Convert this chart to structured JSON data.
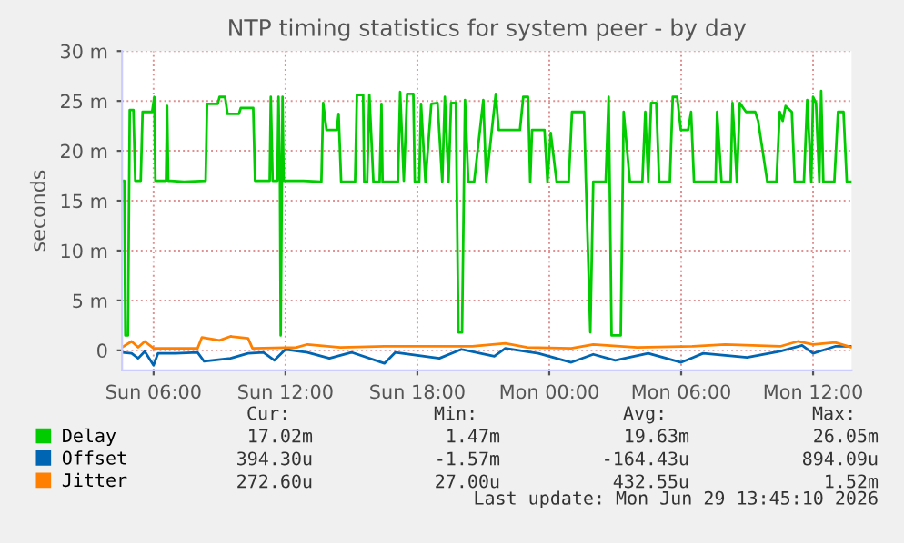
{
  "chart_data": {
    "type": "line",
    "title": "NTP timing statistics for system peer - by day",
    "ylabel": "seconds",
    "xlim": [
      "2026-06-28T04:34",
      "2026-06-29T13:45"
    ],
    "xticks": [
      {
        "value": "2026-06-28T06:00",
        "label": "Sun 06:00"
      },
      {
        "value": "2026-06-28T12:00",
        "label": "Sun 12:00"
      },
      {
        "value": "2026-06-28T18:00",
        "label": "Sun 18:00"
      },
      {
        "value": "2026-06-29T00:00",
        "label": "Mon 00:00"
      },
      {
        "value": "2026-06-29T06:00",
        "label": "Mon 06:00"
      },
      {
        "value": "2026-06-29T12:00",
        "label": "Mon 12:00"
      }
    ],
    "ylim": [
      -2,
      30
    ],
    "yticks": [
      0,
      {
        "value": 5,
        "label": "5 m"
      },
      {
        "value": 10,
        "label": "10 m"
      },
      {
        "value": 15,
        "label": "15 m"
      },
      {
        "value": 20,
        "label": "20 m"
      },
      {
        "value": 25,
        "label": "25 m"
      },
      {
        "value": 30,
        "label": "30 m"
      }
    ],
    "grid": true,
    "legend": "bottom",
    "series": [
      {
        "name": "Delay",
        "color": "#00cc00",
        "x": [
          "2026-06-28T04:34",
          "2026-06-28T04:40",
          "2026-06-28T04:43",
          "2026-06-28T04:50",
          "2026-06-28T04:55",
          "2026-06-28T05:05",
          "2026-06-28T05:10",
          "2026-06-28T05:25",
          "2026-06-28T05:30",
          "2026-06-28T05:56",
          "2026-06-28T06:02",
          "2026-06-28T06:05",
          "2026-06-28T06:34",
          "2026-06-28T06:37",
          "2026-06-28T06:40",
          "2026-06-28T06:47",
          "2026-06-28T07:23",
          "2026-06-28T08:22",
          "2026-06-28T08:26",
          "2026-06-28T08:55",
          "2026-06-28T09:00",
          "2026-06-28T09:15",
          "2026-06-28T09:22",
          "2026-06-28T09:53",
          "2026-06-28T09:58",
          "2026-06-28T10:32",
          "2026-06-28T10:37",
          "2026-06-28T11:17",
          "2026-06-28T11:20",
          "2026-06-28T11:25",
          "2026-06-28T11:38",
          "2026-06-28T11:41",
          "2026-06-28T11:45",
          "2026-06-28T11:47",
          "2026-06-28T11:52",
          "2026-06-28T11:55",
          "2026-06-28T12:49",
          "2026-06-28T13:38",
          "2026-06-28T13:43",
          "2026-06-28T13:52",
          "2026-06-28T14:20",
          "2026-06-28T14:25",
          "2026-06-28T14:32",
          "2026-06-28T15:10",
          "2026-06-28T15:15",
          "2026-06-28T15:32",
          "2026-06-28T15:35",
          "2026-06-28T15:43",
          "2026-06-28T15:49",
          "2026-06-28T16:00",
          "2026-06-28T16:17",
          "2026-06-28T16:22",
          "2026-06-28T16:25",
          "2026-06-28T17:07",
          "2026-06-28T17:13",
          "2026-06-28T17:23",
          "2026-06-28T17:32",
          "2026-06-28T17:49",
          "2026-06-28T17:53",
          "2026-06-28T18:05",
          "2026-06-28T18:10",
          "2026-06-28T18:22",
          "2026-06-28T18:38",
          "2026-06-28T18:55",
          "2026-06-28T19:08",
          "2026-06-28T19:15",
          "2026-06-28T19:25",
          "2026-06-28T19:32",
          "2026-06-28T19:45",
          "2026-06-28T19:52",
          "2026-06-28T20:02",
          "2026-06-28T20:10",
          "2026-06-28T20:19",
          "2026-06-28T20:35",
          "2026-06-28T21:00",
          "2026-06-28T21:08",
          "2026-06-28T21:34",
          "2026-06-28T21:42",
          "2026-06-28T22:40",
          "2026-06-28T22:49",
          "2026-06-28T23:02",
          "2026-06-28T23:08",
          "2026-06-28T23:13",
          "2026-06-28T23:47",
          "2026-06-28T23:55",
          "2026-06-29T00:04",
          "2026-06-29T00:20",
          "2026-06-29T00:53",
          "2026-06-29T01:02",
          "2026-06-29T01:35",
          "2026-06-29T01:40",
          "2026-06-29T01:52",
          "2026-06-29T02:00",
          "2026-06-29T02:34",
          "2026-06-29T02:42",
          "2026-06-29T02:50",
          "2026-06-29T03:15",
          "2026-06-29T03:23",
          "2026-06-29T03:40",
          "2026-06-29T04:14",
          "2026-06-29T04:22",
          "2026-06-29T04:30",
          "2026-06-29T04:38",
          "2026-06-29T04:52",
          "2026-06-29T05:00",
          "2026-06-29T05:29",
          "2026-06-29T05:37",
          "2026-06-29T05:49",
          "2026-06-29T05:59",
          "2026-06-29T06:19",
          "2026-06-29T06:27",
          "2026-06-29T06:35",
          "2026-06-29T07:34",
          "2026-06-29T07:38",
          "2026-06-29T07:50",
          "2026-06-29T08:15",
          "2026-06-29T08:20",
          "2026-06-29T08:32",
          "2026-06-29T08:40",
          "2026-06-29T08:57",
          "2026-06-29T09:22",
          "2026-06-29T09:30",
          "2026-06-29T09:55",
          "2026-06-29T10:20",
          "2026-06-29T10:29",
          "2026-06-29T10:37",
          "2026-06-29T10:45",
          "2026-06-29T11:02",
          "2026-06-29T11:10",
          "2026-06-29T11:35",
          "2026-06-29T11:44",
          "2026-06-29T11:55",
          "2026-06-29T12:00",
          "2026-06-29T12:08",
          "2026-06-29T12:17",
          "2026-06-29T12:22",
          "2026-06-29T12:28",
          "2026-06-29T12:58",
          "2026-06-29T13:08",
          "2026-06-29T13:23",
          "2026-06-29T13:32",
          "2026-06-29T13:45"
        ],
        "values": [
          17.0,
          17.0,
          1.5,
          1.5,
          24.1,
          24.1,
          17.0,
          17.0,
          23.9,
          23.9,
          25.4,
          17.0,
          17.0,
          24.5,
          17.0,
          17.0,
          16.9,
          17.0,
          24.7,
          24.7,
          25.4,
          25.4,
          23.7,
          23.7,
          24.3,
          24.3,
          17.0,
          17.0,
          25.4,
          17.0,
          17.0,
          25.4,
          17.0,
          1.5,
          25.4,
          17.0,
          17.0,
          16.9,
          24.8,
          22.1,
          22.1,
          23.7,
          16.9,
          16.9,
          25.6,
          25.6,
          16.9,
          16.9,
          25.6,
          16.9,
          16.9,
          24.7,
          16.9,
          16.9,
          25.9,
          17.0,
          25.7,
          25.7,
          16.9,
          16.9,
          24.7,
          16.9,
          24.7,
          24.8,
          16.9,
          25.4,
          16.9,
          24.8,
          24.8,
          1.8,
          1.8,
          25.1,
          16.9,
          16.9,
          25.1,
          16.9,
          25.7,
          22.1,
          22.1,
          25.4,
          25.4,
          16.9,
          22.1,
          22.1,
          16.9,
          21.8,
          16.9,
          16.9,
          23.9,
          23.9,
          16.9,
          1.8,
          16.9,
          16.9,
          25.4,
          1.5,
          1.5,
          23.9,
          16.9,
          16.9,
          23.9,
          16.9,
          24.8,
          24.8,
          16.9,
          16.9,
          25.4,
          25.4,
          22.1,
          22.1,
          23.9,
          16.9,
          16.9,
          23.9,
          16.9,
          16.9,
          24.8,
          16.9,
          24.8,
          23.9,
          23.9,
          23.0,
          16.9,
          16.9,
          23.9,
          23.0,
          24.5,
          23.9,
          16.9,
          16.9,
          25.1,
          16.9,
          25.4,
          24.8,
          16.9,
          26.0,
          16.9,
          16.9,
          23.9,
          23.9,
          16.9,
          16.9
        ]
      },
      {
        "name": "Offset",
        "color": "#0066b3",
        "x": [
          "2026-06-28T04:34",
          "2026-06-28T05:00",
          "2026-06-28T05:18",
          "2026-06-28T05:36",
          "2026-06-28T06:00",
          "2026-06-28T06:12",
          "2026-06-28T07:00",
          "2026-06-28T08:00",
          "2026-06-28T08:18",
          "2026-06-28T09:30",
          "2026-06-28T10:18",
          "2026-06-28T11:00",
          "2026-06-28T11:30",
          "2026-06-28T12:00",
          "2026-06-28T13:00",
          "2026-06-28T14:00",
          "2026-06-28T15:00",
          "2026-06-28T16:30",
          "2026-06-28T17:00",
          "2026-06-28T19:00",
          "2026-06-28T20:00",
          "2026-06-28T21:30",
          "2026-06-28T22:00",
          "2026-06-28T23:30",
          "2026-06-29T01:00",
          "2026-06-29T02:00",
          "2026-06-29T03:00",
          "2026-06-29T04:30",
          "2026-06-29T06:00",
          "2026-06-29T07:00",
          "2026-06-29T09:00",
          "2026-06-29T10:30",
          "2026-06-29T11:30",
          "2026-06-29T12:00",
          "2026-06-29T13:00",
          "2026-06-29T13:45"
        ],
        "values": [
          -0.2,
          -0.3,
          -0.8,
          -0.1,
          -1.5,
          -0.3,
          -0.3,
          -0.2,
          -1.1,
          -0.8,
          -0.3,
          -0.2,
          -1.0,
          0.1,
          -0.2,
          -0.8,
          -0.2,
          -1.3,
          -0.2,
          -0.8,
          0.1,
          -0.6,
          0.2,
          -0.3,
          -1.2,
          -0.4,
          -1.0,
          -0.3,
          -1.2,
          -0.3,
          -0.7,
          -0.1,
          0.5,
          -0.3,
          0.4,
          0.4
        ]
      },
      {
        "name": "Jitter",
        "color": "#ff8000",
        "x": [
          "2026-06-28T04:34",
          "2026-06-28T05:00",
          "2026-06-28T05:18",
          "2026-06-28T05:36",
          "2026-06-28T06:00",
          "2026-06-28T08:00",
          "2026-06-28T08:12",
          "2026-06-28T09:00",
          "2026-06-28T09:30",
          "2026-06-28T10:18",
          "2026-06-28T10:30",
          "2026-06-28T12:30",
          "2026-06-28T13:00",
          "2026-06-28T14:30",
          "2026-06-28T16:30",
          "2026-06-28T18:30",
          "2026-06-28T20:30",
          "2026-06-28T22:00",
          "2026-06-28T23:00",
          "2026-06-29T01:00",
          "2026-06-29T02:00",
          "2026-06-29T04:00",
          "2026-06-29T06:30",
          "2026-06-29T08:00",
          "2026-06-29T10:30",
          "2026-06-29T11:18",
          "2026-06-29T12:00",
          "2026-06-29T13:00",
          "2026-06-29T13:45"
        ],
        "values": [
          0.3,
          0.9,
          0.3,
          0.9,
          0.2,
          0.2,
          1.3,
          1.0,
          1.4,
          1.2,
          0.2,
          0.3,
          0.6,
          0.3,
          0.4,
          0.4,
          0.4,
          0.7,
          0.3,
          0.2,
          0.6,
          0.3,
          0.4,
          0.6,
          0.4,
          0.9,
          0.6,
          0.8,
          0.3
        ]
      }
    ],
    "annotations": [
      "Cur:",
      "Min:",
      "Avg:",
      "Max:",
      "17.02m",
      "1.47m",
      "19.63m",
      "26.05m",
      "394.30u",
      "-1.57m",
      "-164.43u",
      "894.09u",
      "272.60u",
      "27.00u",
      "432.55u",
      "1.52m",
      "Last update: Mon Jun 29 13:45:10 2026"
    ]
  }
}
